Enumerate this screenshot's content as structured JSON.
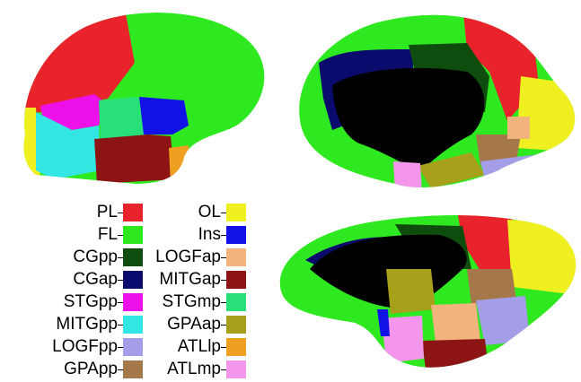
{
  "legend": {
    "left": [
      {
        "label": "PL",
        "color": "#e8232b"
      },
      {
        "label": "FL",
        "color": "#2ee820"
      },
      {
        "label": "CGpp",
        "color": "#0f4d0f"
      },
      {
        "label": "CGap",
        "color": "#0b0b6e"
      },
      {
        "label": "STGpp",
        "color": "#ee10e8"
      },
      {
        "label": "MITGpp",
        "color": "#33e6e3"
      },
      {
        "label": "LOGFpp",
        "color": "#a49ee8"
      },
      {
        "label": "GPApp",
        "color": "#a5784a"
      }
    ],
    "right": [
      {
        "label": "OL",
        "color": "#f0f020"
      },
      {
        "label": "Ins",
        "color": "#1212e6"
      },
      {
        "label": "LOGFap",
        "color": "#f0b47c"
      },
      {
        "label": "MITGap",
        "color": "#8c1414"
      },
      {
        "label": "STGmp",
        "color": "#28e078"
      },
      {
        "label": "GPAap",
        "color": "#a6a01a"
      },
      {
        "label": "ATLlp",
        "color": "#f0a020"
      },
      {
        "label": "ATLmp",
        "color": "#f496ec"
      }
    ]
  }
}
